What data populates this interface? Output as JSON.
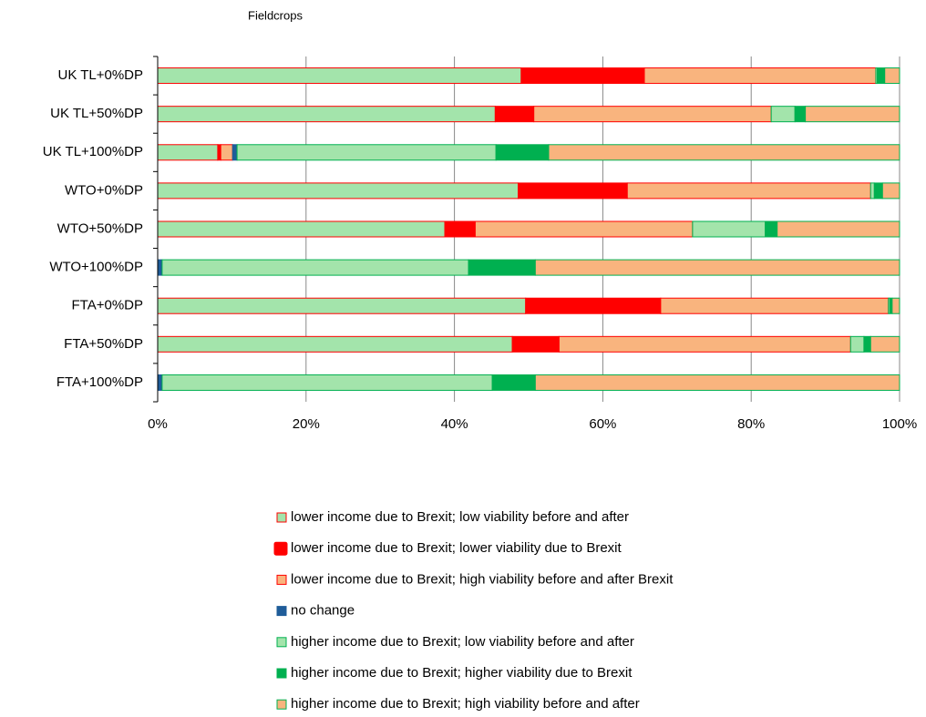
{
  "chart_data": {
    "type": "stacked-bar-horizontal",
    "title": "Fieldcrops",
    "categories": [
      "UK TL+0%DP",
      "UK TL+50%DP",
      "UK TL+100%DP",
      "WTO+0%DP",
      "WTO+50%DP",
      "WTO+100%DP",
      "FTA+0%DP",
      "FTA+50%DP",
      "FTA+100%DP"
    ],
    "series": [
      {
        "name": "lower income due to Brexit; low viability before and after",
        "color": "#a3e4ab",
        "edgecolor": "#ff0000",
        "values": [
          49.0,
          45.5,
          8.1,
          48.6,
          38.7,
          0,
          49.6,
          47.8,
          0
        ]
      },
      {
        "name": "lower income due to Brexit; lower viability due to Brexit",
        "color": "#ff0000",
        "edgecolor": "#ff0000",
        "values": [
          16.6,
          5.2,
          0.4,
          14.7,
          4.1,
          0,
          18.2,
          6.3,
          0
        ]
      },
      {
        "name": "lower income due to Brexit; high viability before and after Brexit",
        "color": "#f9b47e",
        "edgecolor": "#ff0000",
        "values": [
          31.2,
          32.0,
          1.6,
          32.8,
          29.3,
          0,
          30.7,
          39.3,
          0
        ]
      },
      {
        "name": "no change",
        "color": "#1f5c99",
        "edgecolor": "#1f5c99",
        "values": [
          0,
          0,
          0.6,
          0,
          0,
          0.6,
          0,
          0,
          0.6
        ]
      },
      {
        "name": "higher income due to Brexit; low viability before and after",
        "color": "#a3e4ab",
        "edgecolor": "#00b050",
        "values": [
          0.2,
          3.2,
          34.9,
          0.5,
          9.8,
          41.3,
          0.2,
          1.8,
          44.5
        ]
      },
      {
        "name": "higher income due to Brexit; higher viability due to Brexit",
        "color": "#00b050",
        "edgecolor": "#00b050",
        "values": [
          1.0,
          1.4,
          7.1,
          1.1,
          1.6,
          9.0,
          0.3,
          0.9,
          5.8
        ]
      },
      {
        "name": "higher income due to Brexit; high viability before and after",
        "color": "#f9b47e",
        "edgecolor": "#00b050",
        "values": [
          2.0,
          12.7,
          47.3,
          2.3,
          16.5,
          49.1,
          1.0,
          3.9,
          49.1
        ]
      }
    ],
    "xlim": [
      0,
      100
    ],
    "xticks": [
      {
        "value": 0,
        "label": "0%"
      },
      {
        "value": 20,
        "label": "20%"
      },
      {
        "value": 40,
        "label": "40%"
      },
      {
        "value": 60,
        "label": "60%"
      },
      {
        "value": 80,
        "label": "80%"
      },
      {
        "value": 100,
        "label": "100%"
      }
    ],
    "grid": true
  }
}
